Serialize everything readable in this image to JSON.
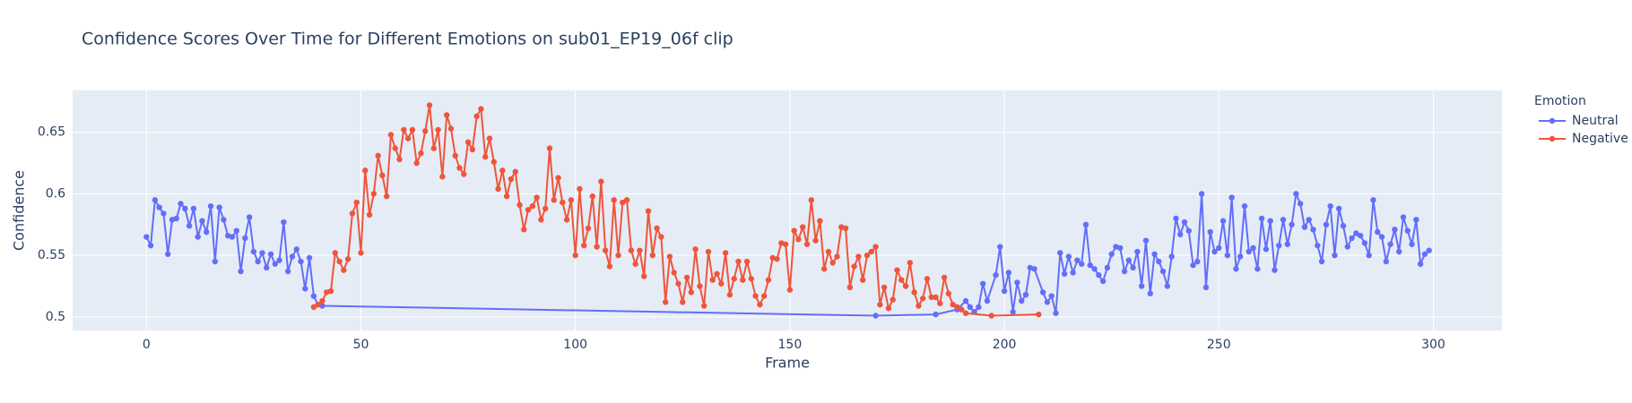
{
  "chart_data": {
    "type": "line",
    "title": "Confidence Scores Over Time for Different Emotions on sub01_EP19_06f clip",
    "x_label": "Frame",
    "y_label": "Confidence",
    "legend_title": "Emotion",
    "legend_position": "right",
    "xlim": [
      -17.2,
      316
    ],
    "xticks": [
      0,
      50,
      100,
      150,
      200,
      250,
      300
    ],
    "ylim": [
      0.489,
      0.684
    ],
    "yticks": [
      0.5,
      0.55,
      0.6,
      0.65
    ],
    "grid": true,
    "series": [
      {
        "name": "Neutral",
        "color": "#636efa",
        "x": [
          0,
          1,
          2,
          3,
          4,
          5,
          6,
          7,
          8,
          9,
          10,
          11,
          12,
          13,
          14,
          15,
          16,
          17,
          18,
          19,
          20,
          21,
          22,
          23,
          24,
          25,
          26,
          27,
          28,
          29,
          30,
          31,
          32,
          33,
          34,
          35,
          36,
          37,
          38,
          39,
          40,
          41,
          170,
          184,
          189,
          191,
          192,
          193,
          194,
          195,
          196,
          198,
          199,
          200,
          201,
          202,
          203,
          204,
          205,
          206,
          207,
          209,
          210,
          211,
          212,
          213,
          214,
          215,
          216,
          217,
          218,
          219,
          220,
          221,
          222,
          223,
          224,
          225,
          226,
          227,
          228,
          229,
          230,
          231,
          232,
          233,
          234,
          235,
          236,
          237,
          238,
          239,
          240,
          241,
          242,
          243,
          244,
          245,
          246,
          247,
          248,
          249,
          250,
          251,
          252,
          253,
          254,
          255,
          256,
          257,
          258,
          259,
          260,
          261,
          262,
          263,
          264,
          265,
          266,
          267,
          268,
          269,
          270,
          271,
          272,
          273,
          274,
          275,
          276,
          277,
          278,
          279,
          280,
          281,
          282,
          283,
          284,
          285,
          286,
          287,
          288,
          289,
          290,
          291,
          292,
          293,
          294,
          295,
          296,
          297,
          298,
          299
        ],
        "values": [
          0.565,
          0.558,
          0.595,
          0.589,
          0.584,
          0.551,
          0.579,
          0.58,
          0.592,
          0.588,
          0.574,
          0.588,
          0.565,
          0.578,
          0.569,
          0.59,
          0.545,
          0.589,
          0.579,
          0.566,
          0.565,
          0.57,
          0.537,
          0.564,
          0.581,
          0.553,
          0.545,
          0.552,
          0.54,
          0.551,
          0.543,
          0.546,
          0.577,
          0.537,
          0.549,
          0.555,
          0.545,
          0.523,
          0.548,
          0.517,
          0.51,
          0.509,
          0.501,
          0.502,
          0.506,
          0.513,
          0.508,
          0.504,
          0.508,
          0.527,
          0.513,
          0.534,
          0.557,
          0.521,
          0.536,
          0.504,
          0.528,
          0.513,
          0.518,
          0.54,
          0.539,
          0.52,
          0.512,
          0.517,
          0.503,
          0.552,
          0.535,
          0.549,
          0.536,
          0.546,
          0.543,
          0.575,
          0.542,
          0.539,
          0.534,
          0.529,
          0.54,
          0.551,
          0.557,
          0.556,
          0.537,
          0.546,
          0.54,
          0.553,
          0.525,
          0.562,
          0.519,
          0.551,
          0.545,
          0.537,
          0.525,
          0.549,
          0.58,
          0.567,
          0.577,
          0.57,
          0.542,
          0.545,
          0.6,
          0.524,
          0.569,
          0.553,
          0.556,
          0.578,
          0.55,
          0.597,
          0.539,
          0.549,
          0.59,
          0.553,
          0.556,
          0.539,
          0.58,
          0.555,
          0.578,
          0.538,
          0.558,
          0.579,
          0.559,
          0.575,
          0.6,
          0.592,
          0.573,
          0.579,
          0.571,
          0.558,
          0.545,
          0.575,
          0.59,
          0.55,
          0.588,
          0.574,
          0.557,
          0.564,
          0.568,
          0.566,
          0.56,
          0.55,
          0.595,
          0.569,
          0.565,
          0.545,
          0.559,
          0.571,
          0.553,
          0.581,
          0.57,
          0.559,
          0.579,
          0.543,
          0.551,
          0.554
        ]
      },
      {
        "name": "Negative",
        "color": "#EF553B",
        "x": [
          39,
          40,
          41,
          42,
          43,
          44,
          45,
          46,
          47,
          48,
          49,
          50,
          51,
          52,
          53,
          54,
          55,
          56,
          57,
          58,
          59,
          60,
          61,
          62,
          63,
          64,
          65,
          66,
          67,
          68,
          69,
          70,
          71,
          72,
          73,
          74,
          75,
          76,
          77,
          78,
          79,
          80,
          81,
          82,
          83,
          84,
          85,
          86,
          87,
          88,
          89,
          90,
          91,
          92,
          93,
          94,
          95,
          96,
          97,
          98,
          99,
          100,
          101,
          102,
          103,
          104,
          105,
          106,
          107,
          108,
          109,
          110,
          111,
          112,
          113,
          114,
          115,
          116,
          117,
          118,
          119,
          120,
          121,
          122,
          123,
          124,
          125,
          126,
          127,
          128,
          129,
          130,
          131,
          132,
          133,
          134,
          135,
          136,
          137,
          138,
          139,
          140,
          141,
          142,
          143,
          144,
          145,
          146,
          147,
          148,
          149,
          150,
          151,
          152,
          153,
          154,
          155,
          156,
          157,
          158,
          159,
          160,
          161,
          162,
          163,
          164,
          165,
          166,
          167,
          168,
          169,
          170,
          171,
          172,
          173,
          174,
          175,
          176,
          177,
          178,
          179,
          180,
          181,
          182,
          183,
          184,
          185,
          186,
          187,
          188,
          189,
          190,
          191,
          197,
          208
        ],
        "values": [
          0.508,
          0.51,
          0.513,
          0.52,
          0.521,
          0.552,
          0.545,
          0.538,
          0.547,
          0.584,
          0.593,
          0.552,
          0.619,
          0.583,
          0.6,
          0.631,
          0.615,
          0.598,
          0.648,
          0.637,
          0.628,
          0.652,
          0.645,
          0.652,
          0.625,
          0.633,
          0.651,
          0.672,
          0.637,
          0.652,
          0.614,
          0.664,
          0.653,
          0.631,
          0.621,
          0.616,
          0.642,
          0.636,
          0.663,
          0.669,
          0.63,
          0.645,
          0.626,
          0.604,
          0.619,
          0.598,
          0.612,
          0.618,
          0.591,
          0.571,
          0.587,
          0.59,
          0.597,
          0.579,
          0.588,
          0.637,
          0.595,
          0.613,
          0.593,
          0.579,
          0.595,
          0.55,
          0.604,
          0.558,
          0.572,
          0.598,
          0.557,
          0.61,
          0.554,
          0.541,
          0.595,
          0.55,
          0.593,
          0.595,
          0.554,
          0.543,
          0.554,
          0.533,
          0.586,
          0.55,
          0.572,
          0.565,
          0.512,
          0.549,
          0.536,
          0.527,
          0.512,
          0.532,
          0.52,
          0.555,
          0.525,
          0.509,
          0.553,
          0.53,
          0.535,
          0.527,
          0.552,
          0.518,
          0.531,
          0.545,
          0.53,
          0.545,
          0.531,
          0.517,
          0.51,
          0.517,
          0.53,
          0.548,
          0.547,
          0.56,
          0.559,
          0.522,
          0.57,
          0.563,
          0.573,
          0.559,
          0.595,
          0.562,
          0.578,
          0.539,
          0.553,
          0.544,
          0.549,
          0.573,
          0.572,
          0.524,
          0.541,
          0.549,
          0.53,
          0.55,
          0.553,
          0.557,
          0.51,
          0.524,
          0.507,
          0.514,
          0.538,
          0.53,
          0.525,
          0.544,
          0.52,
          0.509,
          0.515,
          0.531,
          0.516,
          0.516,
          0.511,
          0.532,
          0.519,
          0.51,
          0.508,
          0.506,
          0.503,
          0.501,
          0.502
        ]
      }
    ]
  }
}
